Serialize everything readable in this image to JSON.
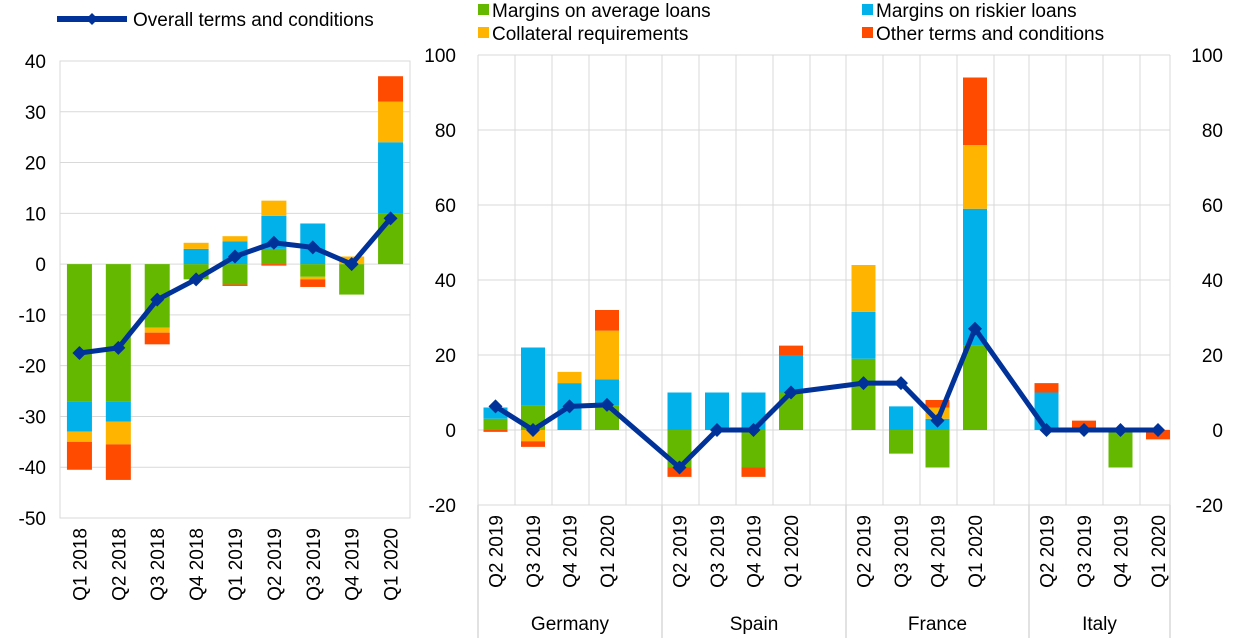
{
  "colors": {
    "margins_average": "#65b800",
    "margins_riskier": "#00b1ea",
    "collateral": "#ffb400",
    "other_terms": "#ff4b00",
    "overall": "#003299",
    "grid": "#d9d9d9"
  },
  "legend": {
    "overall": "Overall terms and conditions",
    "margins_average": "Margins on average loans",
    "margins_riskier": "Margins on riskier loans",
    "collateral": "Collateral requirements",
    "other_terms": "Other terms and conditions"
  },
  "chart_data": [
    {
      "type": "bar",
      "stacked": true,
      "categories": [
        "Q1 2018",
        "Q2 2018",
        "Q3 2018",
        "Q4 2018",
        "Q1 2019",
        "Q2 2019",
        "Q3 2019",
        "Q4 2019",
        "Q1 2020"
      ],
      "ylim": [
        -50,
        40
      ],
      "yticks": [
        "40",
        "30",
        "20",
        "10",
        "0",
        "-10",
        "-20",
        "-30",
        "-40",
        "-50"
      ],
      "grid": true,
      "series": [
        {
          "name": "Margins on average loans",
          "key": "margins_average",
          "values": [
            -27,
            -27,
            -12.5,
            -3,
            -4,
            3,
            -2.5,
            -6,
            10
          ]
        },
        {
          "name": "Margins on riskier loans",
          "key": "margins_riskier",
          "values": [
            -6,
            -4,
            0,
            3,
            4.5,
            6.5,
            8,
            0,
            14
          ]
        },
        {
          "name": "Collateral requirements",
          "key": "collateral",
          "values": [
            -2,
            -4.5,
            -1,
            1.2,
            1,
            3,
            -0.5,
            1.5,
            8
          ]
        },
        {
          "name": "Other terms and conditions",
          "key": "other_terms",
          "values": [
            -5.5,
            -7,
            -2.3,
            0,
            -0.3,
            -0.3,
            -1.5,
            0,
            5
          ]
        }
      ],
      "line": {
        "name": "Overall terms and conditions",
        "values": [
          -17.5,
          -16.5,
          -7,
          -3,
          1.5,
          4.2,
          3.3,
          0,
          9
        ]
      }
    },
    {
      "type": "bar",
      "stacked": true,
      "ylim": [
        -20,
        100
      ],
      "yticks": [
        "100",
        "80",
        "60",
        "40",
        "20",
        "0",
        "-20"
      ],
      "yticks_right": [
        "100",
        "80",
        "60",
        "40",
        "20",
        "0",
        "-20"
      ],
      "grid": true,
      "groups": [
        {
          "name": "Germany",
          "categories": [
            "Q2 2019",
            "Q3 2019",
            "Q4 2019",
            "Q1 2020"
          ]
        },
        {
          "name": "Spain",
          "categories": [
            "Q2 2019",
            "Q3 2019",
            "Q4 2019",
            "Q1 2020"
          ]
        },
        {
          "name": "France",
          "categories": [
            "Q2 2019",
            "Q3 2019",
            "Q4 2019",
            "Q1 2020"
          ]
        },
        {
          "name": "Italy",
          "categories": [
            "Q2 2019",
            "Q3 2019",
            "Q4 2019",
            "Q1 2020"
          ]
        }
      ],
      "series": [
        {
          "name": "Margins on average loans",
          "key": "margins_average",
          "values": [
            3,
            6.5,
            0,
            6.5,
            -10,
            0,
            -10,
            10,
            19,
            -6.3,
            -10,
            22.5,
            0,
            0,
            -10,
            0
          ]
        },
        {
          "name": "Margins on riskier loans",
          "key": "margins_riskier",
          "values": [
            3,
            15.5,
            12.5,
            7,
            10,
            10,
            10,
            10,
            12.5,
            6.3,
            3,
            36.5,
            10,
            0,
            0,
            0
          ]
        },
        {
          "name": "Collateral requirements",
          "key": "collateral",
          "values": [
            0,
            -3,
            3,
            13,
            0,
            0,
            0,
            0,
            12.5,
            0,
            3,
            17,
            0,
            0,
            0,
            0
          ]
        },
        {
          "name": "Other terms and conditions",
          "key": "other_terms",
          "values": [
            -0.5,
            -1.5,
            0,
            5.5,
            -2.5,
            0,
            -2.5,
            2.5,
            0,
            0,
            2,
            18,
            2.5,
            2.5,
            0,
            -2.5
          ]
        }
      ],
      "line": {
        "name": "Overall terms and conditions",
        "values": [
          6.3,
          0,
          6.3,
          6.7,
          -10,
          0,
          0,
          10,
          12.5,
          12.5,
          2.5,
          27,
          0,
          0,
          0,
          0
        ]
      }
    }
  ]
}
